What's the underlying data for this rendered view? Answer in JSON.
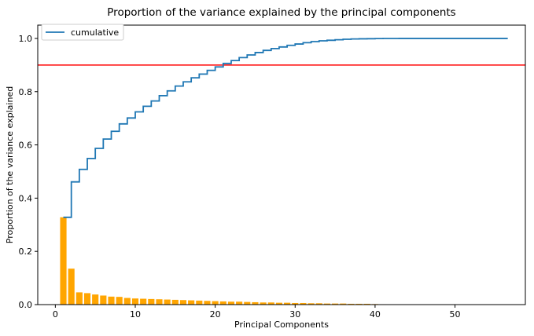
{
  "chart_data": {
    "type": "bar",
    "title": "Proportion of the variance explained by the principal components",
    "xlabel": "Principal Components",
    "ylabel": "Proportion of the variance explained",
    "xlim": [
      -2.2,
      58.8
    ],
    "ylim": [
      0,
      1.05
    ],
    "xticks": [
      0,
      10,
      20,
      30,
      40,
      50
    ],
    "yticks": [
      0.0,
      0.2,
      0.4,
      0.6,
      0.8,
      1.0
    ],
    "ytick_labels": [
      "0.0",
      "0.2",
      "0.4",
      "0.6",
      "0.8",
      "1.0"
    ],
    "grid": false,
    "legend": {
      "placement": "top-left",
      "entries": [
        "cumulative"
      ]
    },
    "threshold": {
      "value": 0.9,
      "color": "#ff0000"
    },
    "series": [
      {
        "kind": "bar",
        "color": "#ffa500",
        "x": [
          1,
          2,
          3,
          4,
          5,
          6,
          7,
          8,
          9,
          10,
          11,
          12,
          13,
          14,
          15,
          16,
          17,
          18,
          19,
          20,
          21,
          22,
          23,
          24,
          25,
          26,
          27,
          28,
          29,
          30,
          31,
          32,
          33,
          34,
          35,
          36,
          37,
          38,
          39,
          40,
          41,
          42,
          43,
          44,
          45,
          46,
          47,
          48,
          49,
          50,
          51,
          52,
          53,
          54,
          55,
          56
        ],
        "values": [
          0.328,
          0.135,
          0.046,
          0.043,
          0.038,
          0.034,
          0.03,
          0.029,
          0.025,
          0.023,
          0.022,
          0.021,
          0.02,
          0.019,
          0.018,
          0.017,
          0.016,
          0.015,
          0.014,
          0.013,
          0.012,
          0.011,
          0.011,
          0.01,
          0.009,
          0.008,
          0.008,
          0.007,
          0.007,
          0.006,
          0.006,
          0.005,
          0.005,
          0.004,
          0.004,
          0.004,
          0.003,
          0.003,
          0.003,
          0.002,
          0.0015,
          0.001,
          0.0008,
          0.0007,
          0.0006,
          0.0005,
          0.0004,
          0.0003,
          0.0002,
          0.0002,
          0.0001,
          0.0001,
          0.0001,
          5e-05,
          5e-05,
          5e-05
        ]
      },
      {
        "name": "cumulative",
        "kind": "step",
        "color": "#1f77b4",
        "x": [
          1,
          2,
          3,
          4,
          5,
          6,
          7,
          8,
          9,
          10,
          11,
          12,
          13,
          14,
          15,
          16,
          17,
          18,
          19,
          20,
          21,
          22,
          23,
          24,
          25,
          26,
          27,
          28,
          29,
          30,
          31,
          32,
          33,
          34,
          35,
          36,
          37,
          38,
          39,
          40,
          41,
          42,
          43,
          44,
          45,
          46,
          47,
          48,
          49,
          50,
          51,
          52,
          53,
          54,
          55,
          56
        ],
        "values": [
          0.328,
          0.461,
          0.508,
          0.549,
          0.587,
          0.622,
          0.651,
          0.679,
          0.701,
          0.724,
          0.745,
          0.765,
          0.785,
          0.803,
          0.821,
          0.837,
          0.852,
          0.866,
          0.88,
          0.893,
          0.906,
          0.917,
          0.928,
          0.938,
          0.947,
          0.955,
          0.962,
          0.968,
          0.974,
          0.979,
          0.984,
          0.988,
          0.991,
          0.993,
          0.995,
          0.997,
          0.998,
          0.9985,
          0.999,
          0.9995,
          0.9998,
          0.9999,
          1.0,
          1.0,
          1.0,
          1.0,
          1.0,
          1.0,
          1.0,
          1.0,
          1.0,
          1.0,
          1.0,
          1.0,
          1.0,
          1.0
        ],
        "end_x": 56.6
      }
    ]
  }
}
